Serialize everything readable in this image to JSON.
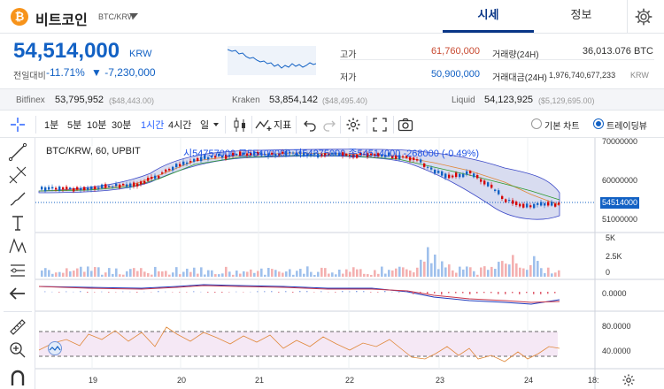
{
  "header": {
    "coin_symbol_glyph": "₿",
    "coin_name": "비트코인",
    "pair": "BTC/KRW",
    "tabs": [
      {
        "label": "시세",
        "active": true
      },
      {
        "label": "정보",
        "active": false
      }
    ]
  },
  "price": {
    "current": "54,514,000",
    "unit": "KRW",
    "change_label": "전일대비",
    "change_pct": "-11.71%",
    "change_abs": "▼ -7,230,000"
  },
  "stats": {
    "high_label": "고가",
    "high": "61,760,000",
    "low_label": "저가",
    "low": "50,900,000",
    "volume_label": "거래량(24H)",
    "volume": "36,013.076 BTC",
    "amount_label": "거래대금(24H)",
    "amount": "1,976,740,677,233",
    "amount_unit": "KRW"
  },
  "exchanges": [
    {
      "name": "Bitfinex",
      "price": "53,795,952",
      "usd": "($48,443.00)"
    },
    {
      "name": "Kraken",
      "price": "53,854,142",
      "usd": "($48,495.40)"
    },
    {
      "name": "Liquid",
      "price": "54,123,925",
      "usd": "($5,129,695.00)"
    }
  ],
  "toolbar": {
    "intervals": [
      "1분",
      "5분",
      "10분",
      "30분",
      "1시간",
      "4시간",
      "일"
    ],
    "active_interval": "1시간",
    "indicator_label": "지표",
    "view_basic": "기본 차트",
    "view_tv": "트레이딩뷰",
    "selected_view": "트레이딩뷰"
  },
  "legend": {
    "symbol": "BTC/KRW, 60, UPBIT",
    "ohlc": "시54757000  고55400000  저54375000  종54514000  -268000 (-0.49%)"
  },
  "axes": {
    "price_ticks": [
      "70000000",
      "60000000",
      "51000000"
    ],
    "last_price_tag": "54514000",
    "volume_ticks": [
      "5K",
      "2.5K",
      "0"
    ],
    "macd_ticks": [
      "0.0000"
    ],
    "rsi_ticks": [
      "80.0000",
      "40.0000"
    ],
    "date_ticks": [
      "19",
      "20",
      "21",
      "22",
      "23",
      "24",
      "18:"
    ]
  },
  "colors": {
    "accent": "#1261c4",
    "up": "#d60000",
    "down": "#1261c4",
    "band_fill": "#d8dcf0"
  },
  "icons": [
    "bitcoin-logo",
    "caret-down-icon",
    "gear-icon",
    "crosshair-icon",
    "trend-line-icon",
    "pitchfork-icon",
    "brush-icon",
    "text-icon",
    "pattern-icon",
    "long-short-icon",
    "arrow-left-icon",
    "ruler-icon",
    "zoom-in-icon",
    "magnet-icon",
    "candle-type-icon",
    "indicator-icon",
    "undo-icon",
    "redo-icon",
    "settings-icon",
    "fullscreen-icon",
    "camera-icon"
  ]
}
